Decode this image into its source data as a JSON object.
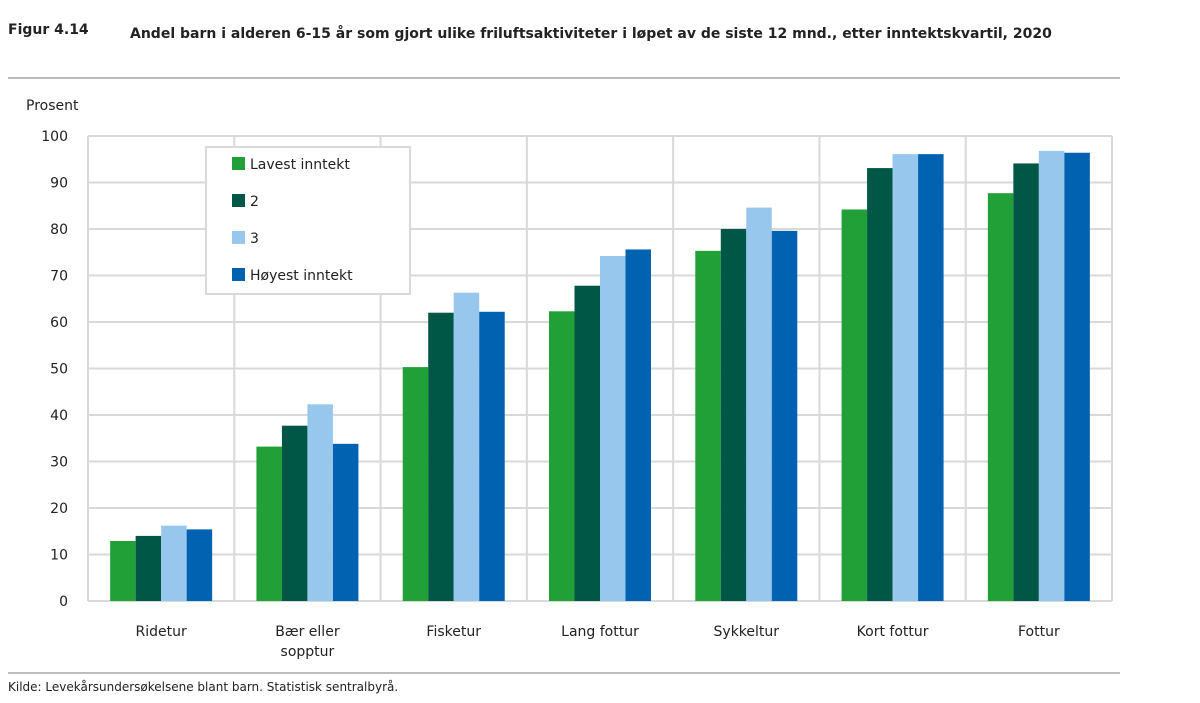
{
  "figure": {
    "label": "Figur 4.14",
    "title": "Andel barn i alderen 6-15 år som gjort ulike friluftsaktiviteter i løpet av de siste 12 mnd., etter inntektskvartil, 2020",
    "source": "Kilde: Levekårsundersøkelsene blant barn. Statistisk sentralbyrå."
  },
  "chart_data": {
    "type": "bar",
    "title": "Andel barn i alderen 6-15 år som gjort ulike friluftsaktiviteter i løpet av de siste 12 mnd., etter inntektskvartil, 2020",
    "xlabel": "",
    "ylabel": "Prosent",
    "ylim": [
      0,
      100
    ],
    "yticks": [
      0,
      10,
      20,
      30,
      40,
      50,
      60,
      70,
      80,
      90,
      100
    ],
    "grid": true,
    "legend_position": "top-left",
    "categories": [
      "Ridetur",
      "Bær eller sopptur",
      "Fisketur",
      "Lang fottur",
      "Sykkeltur",
      "Kort fottur",
      "Fottur"
    ],
    "series": [
      {
        "name": "Lavest inntekt",
        "color": "#21a038",
        "values": [
          12.9,
          33.2,
          50.3,
          62.3,
          75.3,
          84.2,
          87.7
        ]
      },
      {
        "name": "2",
        "color": "#005745",
        "values": [
          14.0,
          37.7,
          62.0,
          67.8,
          80.0,
          93.1,
          94.1
        ]
      },
      {
        "name": "3",
        "color": "#97c7ec",
        "values": [
          16.2,
          42.3,
          66.3,
          74.2,
          84.6,
          96.1,
          96.8
        ]
      },
      {
        "name": "Høyest inntekt",
        "color": "#0062b0",
        "values": [
          15.4,
          33.8,
          62.2,
          75.6,
          79.6,
          96.1,
          96.4
        ]
      }
    ]
  }
}
